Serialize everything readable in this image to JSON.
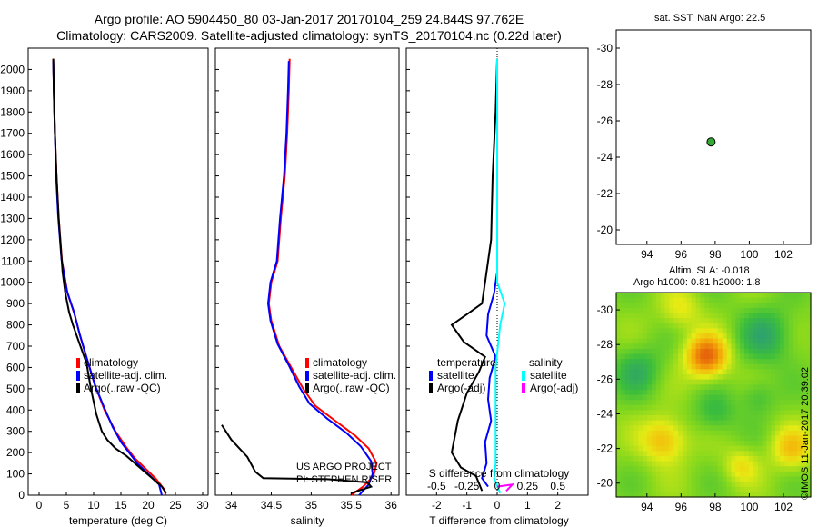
{
  "header": {
    "line1": "Argo profile: AO 5904450_80 03-Jan-2017 20170104_259 24.844S 97.762E",
    "line2": "Climatology: CARS2009. Satellite-adjusted climatology: synTS_20170104.nc (0.22d later)"
  },
  "side": {
    "sst_title": "sat. SST: NaN Argo: 22.5",
    "sla_line1": "Altim. SLA: -0.018",
    "sla_line2": "Argo h1000: 0.81 h2000: 1.8"
  },
  "credit": "©IMOS 11-Jan-2017 20:39:02",
  "project": {
    "line1": "US ARGO PROJECT",
    "line2": "PI: STEPHEN RISER"
  },
  "colors": {
    "climatology": "#ff0000",
    "satellite": "#0000ff",
    "argo": "#000000",
    "sal_satellite": "#00ffff",
    "sal_argo": "#ff00ff",
    "marker": "#33aa33"
  },
  "chart_data": [
    {
      "type": "line",
      "id": "temperature",
      "xlabel": "temperature (deg C)",
      "ylabel": "",
      "xlim": [
        -2,
        31
      ],
      "ylim": [
        2100,
        0
      ],
      "xticks": [
        0,
        5,
        10,
        15,
        20,
        25,
        30
      ],
      "yticks": [
        0,
        100,
        200,
        300,
        400,
        500,
        600,
        700,
        800,
        900,
        1000,
        1100,
        1200,
        1300,
        1400,
        1500,
        1600,
        1700,
        1800,
        1900,
        2000
      ],
      "legend": [
        "climatology",
        "satellite-adj. clim.",
        "Argo(..raw -QC)"
      ],
      "legend_position": "lower-right",
      "series": [
        {
          "name": "climatology",
          "color": "#ff0000",
          "points": [
            [
              23.2,
              0
            ],
            [
              23,
              25
            ],
            [
              21.5,
              75
            ],
            [
              19.5,
              125
            ],
            [
              17.5,
              175
            ],
            [
              16,
              225
            ],
            [
              14,
              300
            ],
            [
              12,
              400
            ],
            [
              10.5,
              500
            ],
            [
              9,
              620
            ],
            [
              7.5,
              750
            ],
            [
              6.5,
              850
            ],
            [
              5.2,
              950
            ],
            [
              4.2,
              1100
            ],
            [
              3.6,
              1300
            ],
            [
              3.2,
              1500
            ],
            [
              2.9,
              1700
            ],
            [
              2.7,
              1900
            ],
            [
              2.6,
              2050
            ]
          ]
        },
        {
          "name": "satellite-adj. clim.",
          "color": "#0000ff",
          "points": [
            [
              22.5,
              0
            ],
            [
              22,
              50
            ],
            [
              20,
              100
            ],
            [
              18,
              150
            ],
            [
              16.5,
              200
            ],
            [
              15,
              250
            ],
            [
              13.5,
              320
            ],
            [
              11.8,
              420
            ],
            [
              10.2,
              520
            ],
            [
              8.8,
              640
            ],
            [
              7.4,
              760
            ],
            [
              6.4,
              860
            ],
            [
              5.1,
              960
            ],
            [
              4.1,
              1110
            ],
            [
              3.5,
              1310
            ],
            [
              3.1,
              1510
            ],
            [
              2.9,
              1710
            ],
            [
              2.7,
              1910
            ],
            [
              2.6,
              2040
            ]
          ]
        },
        {
          "name": "Argo(..raw -QC)",
          "color": "#000000",
          "points": [
            [
              23.3,
              10
            ],
            [
              22.5,
              40
            ],
            [
              20.5,
              85
            ],
            [
              18,
              140
            ],
            [
              16,
              185
            ],
            [
              14,
              220
            ],
            [
              12.5,
              260
            ],
            [
              11.5,
              300
            ],
            [
              10.5,
              380
            ],
            [
              9.5,
              500
            ],
            [
              8.7,
              620
            ],
            [
              7.3,
              720
            ],
            [
              6.2,
              800
            ],
            [
              5.5,
              860
            ],
            [
              4.8,
              950
            ],
            [
              4.3,
              1050
            ],
            [
              3.6,
              1300
            ],
            [
              3.2,
              1500
            ],
            [
              2.9,
              1700
            ],
            [
              2.7,
              1900
            ],
            [
              2.6,
              2050
            ]
          ]
        }
      ]
    },
    {
      "type": "line",
      "id": "salinity",
      "xlabel": "salinity",
      "ylabel": "",
      "xlim": [
        33.8,
        36.1
      ],
      "ylim": [
        2100,
        0
      ],
      "xticks": [
        34,
        34.5,
        35,
        35.5,
        36
      ],
      "legend": [
        "climatology",
        "satellite-adj. clim.",
        "Argo(..raw -QC)"
      ],
      "legend_position": "lower-right",
      "series": [
        {
          "name": "climatology",
          "color": "#ff0000",
          "points": [
            [
              35.5,
              0
            ],
            [
              35.65,
              40
            ],
            [
              35.78,
              90
            ],
            [
              35.82,
              150
            ],
            [
              35.72,
              220
            ],
            [
              35.55,
              280
            ],
            [
              35.3,
              350
            ],
            [
              35.05,
              420
            ],
            [
              34.9,
              500
            ],
            [
              34.75,
              600
            ],
            [
              34.6,
              700
            ],
            [
              34.5,
              820
            ],
            [
              34.47,
              900
            ],
            [
              34.5,
              1000
            ],
            [
              34.58,
              1100
            ],
            [
              34.62,
              1300
            ],
            [
              34.67,
              1500
            ],
            [
              34.7,
              1700
            ],
            [
              34.72,
              1900
            ],
            [
              34.73,
              2050
            ]
          ]
        },
        {
          "name": "satellite-adj. clim.",
          "color": "#0000ff",
          "points": [
            [
              35.6,
              0
            ],
            [
              35.72,
              50
            ],
            [
              35.77,
              100
            ],
            [
              35.75,
              160
            ],
            [
              35.62,
              230
            ],
            [
              35.45,
              290
            ],
            [
              35.2,
              360
            ],
            [
              34.98,
              430
            ],
            [
              34.85,
              510
            ],
            [
              34.72,
              610
            ],
            [
              34.58,
              710
            ],
            [
              34.49,
              820
            ],
            [
              34.46,
              900
            ],
            [
              34.49,
              1000
            ],
            [
              34.57,
              1100
            ],
            [
              34.61,
              1300
            ],
            [
              34.66,
              1500
            ],
            [
              34.69,
              1700
            ],
            [
              34.71,
              1900
            ],
            [
              34.72,
              2040
            ]
          ]
        },
        {
          "name": "Argo(..raw -QC)",
          "color": "#000000",
          "points": [
            [
              35.5,
              10
            ],
            [
              35.75,
              40
            ],
            [
              35.7,
              60
            ],
            [
              35.2,
              75
            ],
            [
              34.4,
              80
            ],
            [
              34.3,
              110
            ],
            [
              34.2,
              180
            ],
            [
              34.0,
              260
            ],
            [
              33.88,
              330
            ]
          ]
        }
      ]
    },
    {
      "type": "line",
      "id": "difference",
      "xlabel": "T difference from climatology",
      "xlabel2": "S difference from climatology",
      "xlim": [
        -3,
        3
      ],
      "ylim": [
        2100,
        0
      ],
      "xticks": [
        -2,
        -1,
        0,
        1,
        2
      ],
      "x2ticks": [
        -0.5,
        -0.25,
        0,
        0.25,
        0.5
      ],
      "legend_titles": [
        "temperature",
        "salinity"
      ],
      "legend": [
        "satellite",
        "Argo(-adj)",
        "satellite",
        "Argo(-adj)"
      ],
      "series": [
        {
          "name": "satellite",
          "group": "temperature",
          "color": "#0000ff",
          "points": [
            [
              -0.3,
              40
            ],
            [
              -0.5,
              80
            ],
            [
              -0.35,
              150
            ],
            [
              -0.4,
              250
            ],
            [
              -0.2,
              350
            ],
            [
              -0.3,
              450
            ],
            [
              -0.25,
              550
            ],
            [
              -0.05,
              650
            ],
            [
              -0.35,
              750
            ],
            [
              -0.3,
              850
            ],
            [
              -0.1,
              950
            ],
            [
              0,
              1050
            ],
            [
              0,
              1300
            ],
            [
              0,
              2050
            ]
          ]
        },
        {
          "name": "Argo(-adj)",
          "group": "temperature",
          "color": "#000000",
          "points": [
            [
              -0.5,
              20
            ],
            [
              -0.7,
              90
            ],
            [
              -1.2,
              130
            ],
            [
              -1.5,
              200
            ],
            [
              -1.3,
              350
            ],
            [
              -1.0,
              480
            ],
            [
              -0.6,
              580
            ],
            [
              -0.4,
              650
            ],
            [
              -1.1,
              720
            ],
            [
              -1.5,
              800
            ],
            [
              -1.0,
              850
            ],
            [
              -0.5,
              900
            ],
            [
              -0.4,
              1000
            ],
            [
              -0.2,
              1200
            ],
            [
              -0.15,
              1500
            ],
            [
              -0.05,
              1800
            ],
            [
              0,
              2050
            ]
          ]
        },
        {
          "name": "satellite",
          "group": "salinity",
          "color": "#00ffff",
          "points": [
            [
              0.1,
              10
            ],
            [
              -0.1,
              80
            ],
            [
              -0.05,
              150
            ],
            [
              -0.05,
              300
            ],
            [
              -0.05,
              600
            ],
            [
              0.1,
              800
            ],
            [
              0.25,
              900
            ],
            [
              0,
              1000
            ],
            [
              0,
              2050
            ]
          ]
        },
        {
          "name": "Argo(-adj)",
          "group": "salinity",
          "color": "#ff00ff",
          "points": [
            [
              0.3,
              20
            ],
            [
              0.5,
              50
            ],
            [
              0,
              40
            ]
          ]
        }
      ]
    },
    {
      "type": "scatter",
      "id": "sst_map",
      "xlim": [
        92.2,
        103.6
      ],
      "ylim": [
        -31,
        -19.2
      ],
      "xticks": [
        94,
        96,
        98,
        100,
        102
      ],
      "yticks": [
        -20,
        -22,
        -24,
        -26,
        -28,
        -30
      ],
      "points": [
        [
          97.76,
          -24.84
        ]
      ]
    },
    {
      "type": "heatmap",
      "id": "sla_map",
      "xlim": [
        92.2,
        103.6
      ],
      "ylim": [
        -31,
        -19.2
      ],
      "xticks": [
        94,
        96,
        98,
        100,
        102
      ],
      "yticks": [
        -20,
        -22,
        -24,
        -26,
        -28,
        -30
      ],
      "blobs": [
        {
          "x": 97.5,
          "y": -27.3,
          "v": 1.0,
          "r": 1.2
        },
        {
          "x": 95.0,
          "y": -22.5,
          "v": 0.6,
          "r": 1.3
        },
        {
          "x": 102.5,
          "y": -22.0,
          "v": 0.5,
          "r": 1.2
        },
        {
          "x": 99.5,
          "y": -21.0,
          "v": 0.35,
          "r": 1.0
        },
        {
          "x": 93.5,
          "y": -26.5,
          "v": -0.35,
          "r": 1.4
        },
        {
          "x": 101.0,
          "y": -28.5,
          "v": -0.4,
          "r": 1.6
        },
        {
          "x": 98.0,
          "y": -24.0,
          "v": -0.3,
          "r": 1.2
        },
        {
          "x": 100.5,
          "y": -25.0,
          "v": -0.25,
          "r": 1.0
        },
        {
          "x": 96.0,
          "y": -30.0,
          "v": 0.3,
          "r": 1.2
        }
      ]
    }
  ]
}
